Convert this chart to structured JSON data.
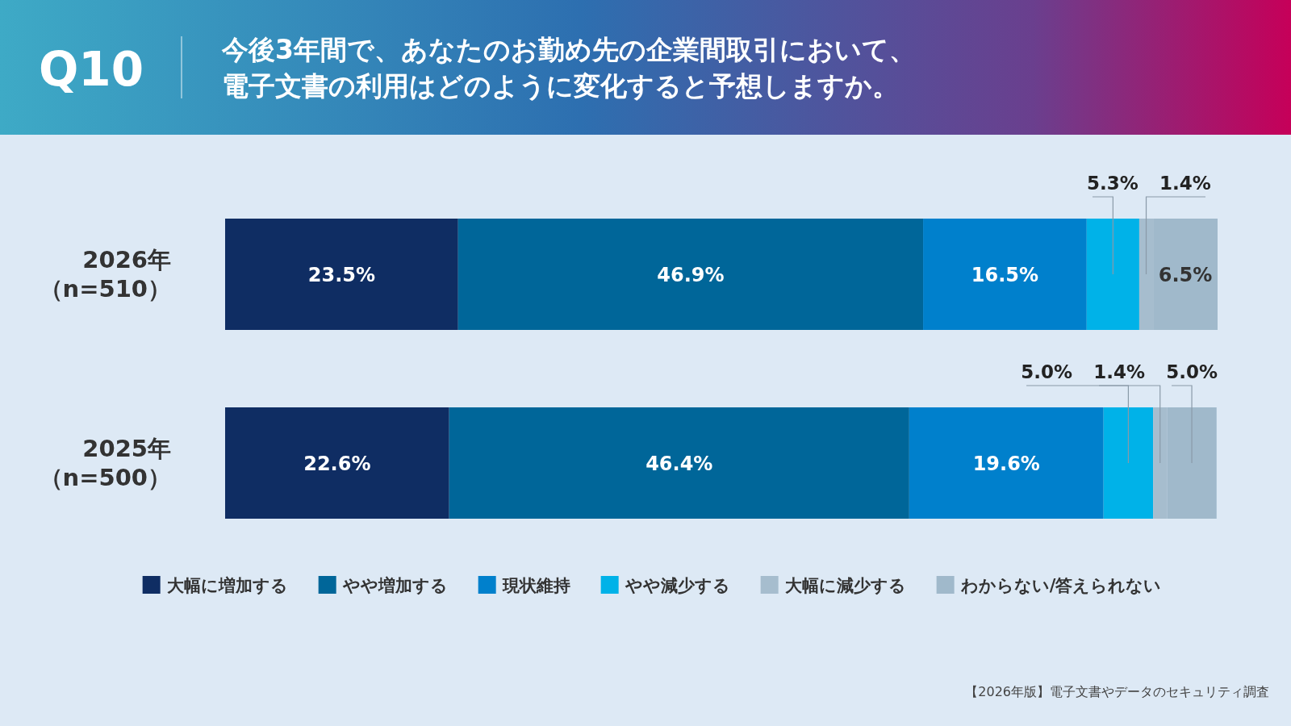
{
  "chart_data": {
    "type": "bar",
    "orientation": "horizontal",
    "stacked": true,
    "legend": "bottom",
    "title": "Q10",
    "subtitle": "今後3年間で、あなたのお勤め先の企業間取引において、電子文書の利用はどのように変化すると予想しますか。",
    "categories": [
      "2026年（n=510）",
      "2025年（n=500）"
    ],
    "series": [
      {
        "name": "大幅に増加する",
        "color": "#0f2d63",
        "values": [
          23.5,
          22.6
        ],
        "value_labels": [
          "23.5%",
          "22.6%"
        ]
      },
      {
        "name": "やや増加する",
        "color": "#006699",
        "values": [
          46.9,
          46.4
        ],
        "value_labels": [
          "46.9%",
          "46.4%"
        ]
      },
      {
        "name": "現状維持",
        "color": "#0080cc",
        "values": [
          16.5,
          19.6
        ],
        "value_labels": [
          "16.5%",
          "19.6%"
        ]
      },
      {
        "name": "やや減少する",
        "color": "#00b2e8",
        "values": [
          5.3,
          5.0
        ],
        "value_labels": [
          "5.3%",
          "5.0%"
        ]
      },
      {
        "name": "大幅に減少する",
        "color": "#a6bdce",
        "values": [
          1.4,
          1.4
        ],
        "value_labels": [
          "1.4%",
          "1.4%"
        ]
      },
      {
        "name": "わからない/答えられない",
        "color": "#a0b9cb",
        "values": [
          6.5,
          5.0
        ],
        "value_labels": [
          "6.5%",
          "5.0%"
        ]
      }
    ],
    "annotations": [
      "【2026年版】電子文書やデータのセキュリティ調査"
    ]
  }
}
